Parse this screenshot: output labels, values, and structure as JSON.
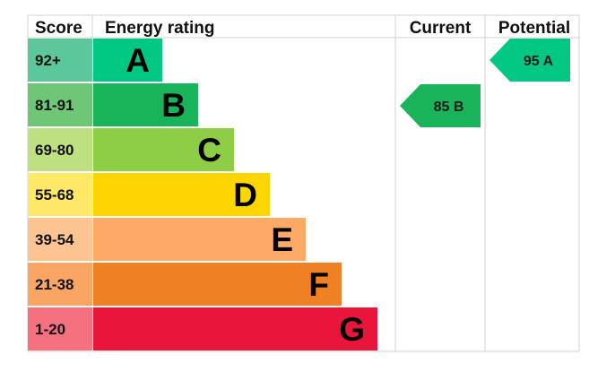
{
  "chart_data": {
    "type": "bar",
    "headers": {
      "score": "Score",
      "rating": "Energy rating",
      "current": "Current",
      "potential": "Potential"
    },
    "bands": [
      {
        "letter": "A",
        "range": "92+",
        "score_color": "#5cc79a",
        "bar_color": "#00c781"
      },
      {
        "letter": "B",
        "range": "81-91",
        "score_color": "#6dc777",
        "bar_color": "#19b459"
      },
      {
        "letter": "C",
        "range": "69-80",
        "score_color": "#bfe080",
        "bar_color": "#8dce46"
      },
      {
        "letter": "D",
        "range": "55-68",
        "score_color": "#ffe966",
        "bar_color": "#ffd500"
      },
      {
        "letter": "E",
        "range": "39-54",
        "score_color": "#fcc490",
        "bar_color": "#fcaa65"
      },
      {
        "letter": "F",
        "range": "21-38",
        "score_color": "#f9a563",
        "bar_color": "#ef8023"
      },
      {
        "letter": "G",
        "range": "1-20",
        "score_color": "#f5717f",
        "bar_color": "#e9153b"
      }
    ],
    "current": {
      "value": 85,
      "band": "B",
      "label": "85 B",
      "color": "#19b459"
    },
    "potential": {
      "value": 95,
      "band": "A",
      "label": "95 A",
      "color": "#00c781"
    }
  }
}
